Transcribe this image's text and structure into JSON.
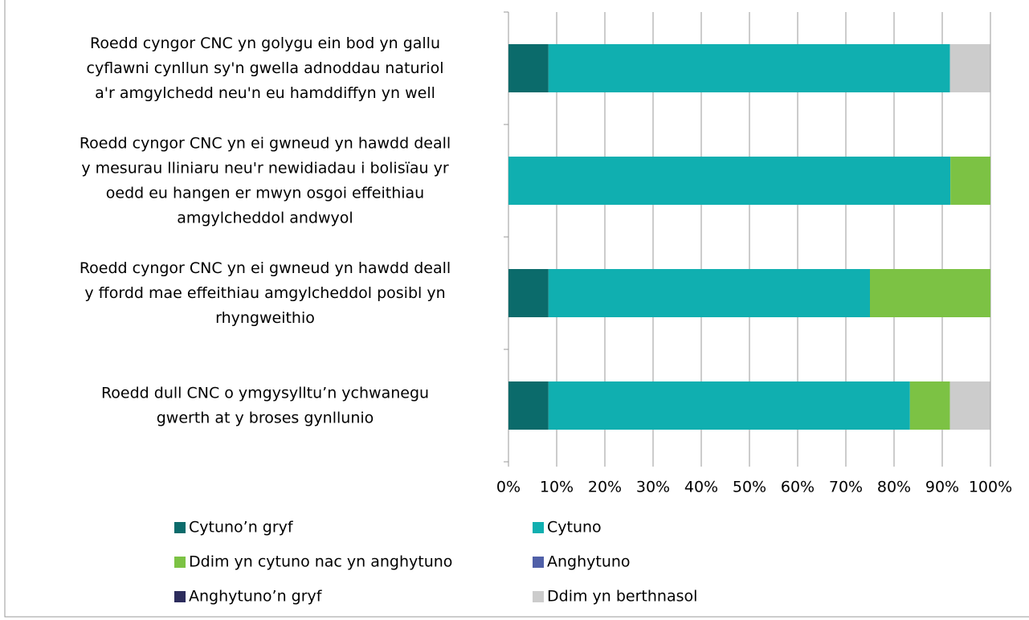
{
  "chart_data": {
    "type": "stacked-bar-horizontal",
    "categories": [
      "Roedd cyngor CNC yn golygu ein bod yn gallu\ncyflawni cynllun sy'n gwella adnoddau naturiol\na'r amgylchedd neu'n eu hamddiffyn yn well",
      "Roedd cyngor CNC yn ei gwneud yn hawdd deall\ny mesurau lliniaru neu'r newidiadau i bolisïau yr\noedd eu hangen er mwyn osgoi effeithiau\namgylcheddol andwyol",
      "Roedd cyngor CNC yn ei gwneud yn hawdd deall\ny ffordd mae effeithiau amgylcheddol posibl yn\nrhyngweithio",
      "Roedd dull CNC o ymgysylltu’n ychwanegu\ngwerth at y broses gynllunio"
    ],
    "series": [
      {
        "name": "Cytuno’n gryf",
        "color": "#0b6b6b",
        "values": [
          8.3,
          0,
          8.3,
          8.3
        ]
      },
      {
        "name": "Cytuno",
        "color": "#10afb0",
        "values": [
          83.3,
          91.7,
          66.7,
          75
        ]
      },
      {
        "name": "Ddim yn cytuno nac yn anghytuno",
        "color": "#7cc244",
        "values": [
          0,
          8.3,
          25,
          8.3
        ]
      },
      {
        "name": "Anghytuno",
        "color": "#5060a8",
        "values": [
          0,
          0,
          0,
          0
        ]
      },
      {
        "name": "Anghytuno’n gryf",
        "color": "#2c2c5c",
        "values": [
          0,
          0,
          0,
          0
        ]
      },
      {
        "name": "Ddim yn berthnasol",
        "color": "#cccccc",
        "values": [
          8.3,
          0,
          0,
          8.3
        ]
      }
    ],
    "xlim": [
      0,
      100
    ],
    "xticks": [
      {
        "value": 0,
        "label": "0%"
      },
      {
        "value": 10,
        "label": "10%"
      },
      {
        "value": 20,
        "label": "20%"
      },
      {
        "value": 30,
        "label": "30%"
      },
      {
        "value": 40,
        "label": "40%"
      },
      {
        "value": 50,
        "label": "50%"
      },
      {
        "value": 60,
        "label": "60%"
      },
      {
        "value": 70,
        "label": "70%"
      },
      {
        "value": 80,
        "label": "80%"
      },
      {
        "value": 90,
        "label": "90%"
      },
      {
        "value": 100,
        "label": "100%"
      }
    ],
    "grid": true
  }
}
